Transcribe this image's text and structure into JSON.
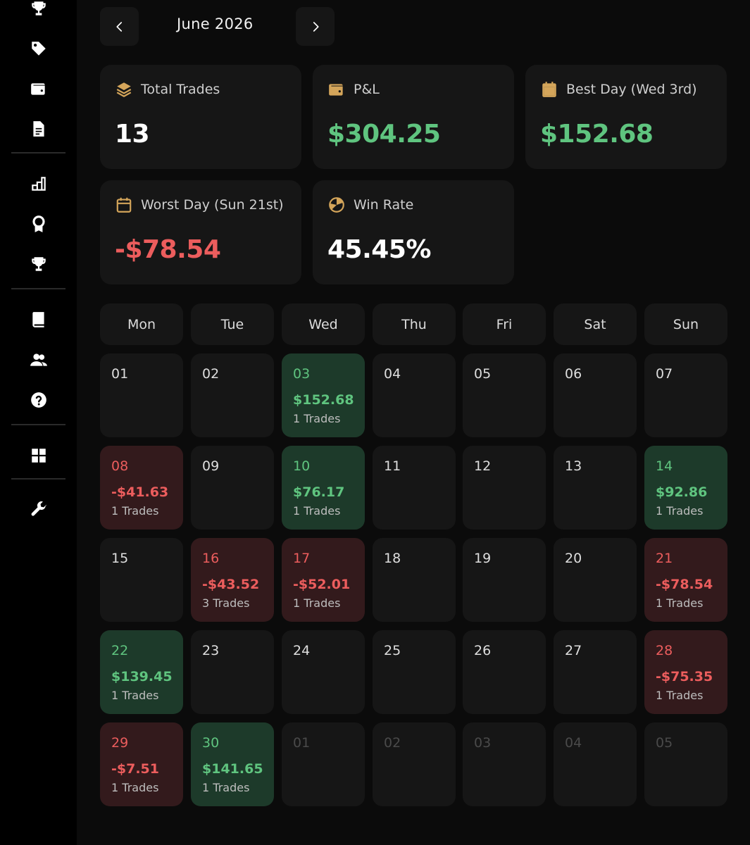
{
  "colors": {
    "accent": "#d4a55a",
    "profit": "#5fc47f",
    "loss": "#ec5d5d"
  },
  "sidebar": {
    "icons": [
      "trophy-icon",
      "tag-icon",
      "wallet-icon",
      "document-icon",
      "bar-chart-icon",
      "award-icon",
      "trophy-icon",
      "book-icon",
      "users-icon",
      "help-icon",
      "grid-icon",
      "wrench-icon"
    ]
  },
  "header": {
    "month": "June 2026"
  },
  "stats": {
    "total_trades": {
      "label": "Total Trades",
      "value": "13"
    },
    "pnl": {
      "label": "P&L",
      "value": "$304.25"
    },
    "best_day": {
      "label": "Best Day (Wed 3rd)",
      "value": "$152.68"
    },
    "worst_day": {
      "label": "Worst Day (Sun 21st)",
      "value": "-$78.54"
    },
    "win_rate": {
      "label": "Win Rate",
      "value": "45.45%"
    }
  },
  "weekdays": [
    "Mon",
    "Tue",
    "Wed",
    "Thu",
    "Fri",
    "Sat",
    "Sun"
  ],
  "days": [
    {
      "num": "01",
      "type": "empty"
    },
    {
      "num": "02",
      "type": "empty"
    },
    {
      "num": "03",
      "type": "win",
      "pnl": "$152.68",
      "trades": "1 Trades"
    },
    {
      "num": "04",
      "type": "empty"
    },
    {
      "num": "05",
      "type": "empty"
    },
    {
      "num": "06",
      "type": "empty"
    },
    {
      "num": "07",
      "type": "empty"
    },
    {
      "num": "08",
      "type": "loss",
      "pnl": "-$41.63",
      "trades": "1 Trades"
    },
    {
      "num": "09",
      "type": "empty"
    },
    {
      "num": "10",
      "type": "win",
      "pnl": "$76.17",
      "trades": "1 Trades"
    },
    {
      "num": "11",
      "type": "empty"
    },
    {
      "num": "12",
      "type": "empty"
    },
    {
      "num": "13",
      "type": "empty"
    },
    {
      "num": "14",
      "type": "win",
      "pnl": "$92.86",
      "trades": "1 Trades"
    },
    {
      "num": "15",
      "type": "empty"
    },
    {
      "num": "16",
      "type": "loss",
      "pnl": "-$43.52",
      "trades": "3 Trades"
    },
    {
      "num": "17",
      "type": "loss",
      "pnl": "-$52.01",
      "trades": "1 Trades"
    },
    {
      "num": "18",
      "type": "empty"
    },
    {
      "num": "19",
      "type": "empty"
    },
    {
      "num": "20",
      "type": "empty"
    },
    {
      "num": "21",
      "type": "loss",
      "pnl": "-$78.54",
      "trades": "1 Trades"
    },
    {
      "num": "22",
      "type": "win",
      "pnl": "$139.45",
      "trades": "1 Trades"
    },
    {
      "num": "23",
      "type": "empty"
    },
    {
      "num": "24",
      "type": "empty"
    },
    {
      "num": "25",
      "type": "empty"
    },
    {
      "num": "26",
      "type": "empty"
    },
    {
      "num": "27",
      "type": "empty"
    },
    {
      "num": "28",
      "type": "loss",
      "pnl": "-$75.35",
      "trades": "1 Trades"
    },
    {
      "num": "29",
      "type": "loss",
      "pnl": "-$7.51",
      "trades": "1 Trades"
    },
    {
      "num": "30",
      "type": "win",
      "pnl": "$141.65",
      "trades": "1 Trades"
    },
    {
      "num": "01",
      "type": "other"
    },
    {
      "num": "02",
      "type": "other"
    },
    {
      "num": "03",
      "type": "other"
    },
    {
      "num": "04",
      "type": "other"
    },
    {
      "num": "05",
      "type": "other"
    }
  ]
}
